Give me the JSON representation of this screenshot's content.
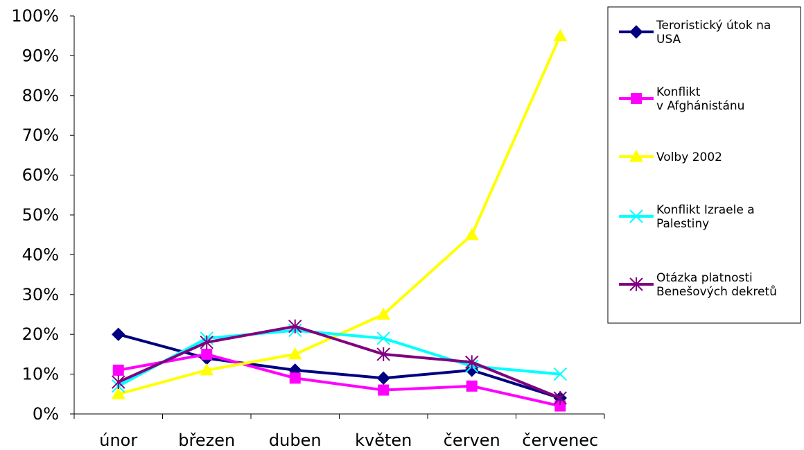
{
  "chart_data": {
    "type": "line",
    "title": "",
    "xlabel": "",
    "ylabel": "",
    "categories": [
      "únor",
      "březen",
      "duben",
      "květen",
      "červen",
      "červenec"
    ],
    "ylim": [
      0,
      100
    ],
    "y_ticks": [
      "0%",
      "10%",
      "20%",
      "30%",
      "40%",
      "50%",
      "60%",
      "70%",
      "80%",
      "90%",
      "100%"
    ],
    "grid": false,
    "legend_position": "right",
    "series": [
      {
        "name": "Teroristický útok na USA",
        "legend_lines": [
          "Teroristický útok na",
          "USA"
        ],
        "values": [
          20,
          14,
          11,
          9,
          11,
          4
        ],
        "color": "#000080",
        "marker": "diamond"
      },
      {
        "name": "Konflikt v Afghánistánu",
        "legend_lines": [
          "Konflikt",
          "v Afghánistánu"
        ],
        "values": [
          11,
          15,
          9,
          6,
          7,
          2
        ],
        "color": "#ff00ff",
        "marker": "square"
      },
      {
        "name": "Volby 2002",
        "legend_lines": [
          "Volby 2002"
        ],
        "values": [
          5,
          11,
          15,
          25,
          45,
          95
        ],
        "color": "#ffff00",
        "marker": "triangle"
      },
      {
        "name": "Konflikt Izraele a Palestiny",
        "legend_lines": [
          "Konflikt Izraele a",
          "Palestiny"
        ],
        "values": [
          7,
          19,
          21,
          19,
          12,
          10
        ],
        "color": "#00ffff",
        "marker": "x"
      },
      {
        "name": "Otázka platnosti Benešových dekretů",
        "legend_lines": [
          "Otázka platnosti",
          "Benešových dekretů"
        ],
        "values": [
          8,
          18,
          22,
          15,
          13,
          4
        ],
        "color": "#800080",
        "marker": "star"
      }
    ]
  }
}
